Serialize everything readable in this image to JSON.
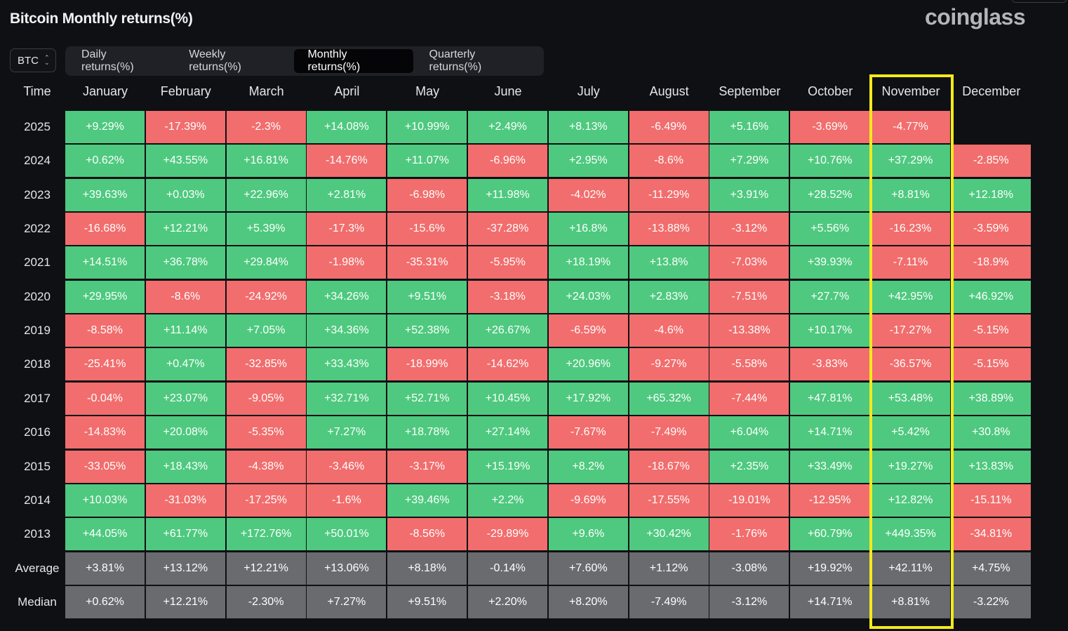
{
  "header": {
    "title": "Bitcoin Monthly returns(%)",
    "brand": "coinglass"
  },
  "asset_select": {
    "value": "BTC"
  },
  "tabs": [
    {
      "label": "Daily returns(%)",
      "active": false
    },
    {
      "label": "Weekly returns(%)",
      "active": false
    },
    {
      "label": "Monthly returns(%)",
      "active": true
    },
    {
      "label": "Quarterly returns(%)",
      "active": false
    }
  ],
  "colors": {
    "positive": "#4ec97f",
    "negative": "#f26d6d",
    "summary": "#6a6b6f",
    "highlight": "#f3ea1c"
  },
  "chart_data": {
    "type": "heatmap",
    "row_header": "Time",
    "columns": [
      "January",
      "February",
      "March",
      "April",
      "May",
      "June",
      "July",
      "August",
      "September",
      "October",
      "November",
      "December"
    ],
    "highlighted_column": "November",
    "rows": [
      {
        "label": "2025",
        "kind": "year",
        "values": [
          "+9.29%",
          "-17.39%",
          "-2.3%",
          "+14.08%",
          "+10.99%",
          "+2.49%",
          "+8.13%",
          "-6.49%",
          "+5.16%",
          "-3.69%",
          "-4.77%",
          ""
        ]
      },
      {
        "label": "2024",
        "kind": "year",
        "values": [
          "+0.62%",
          "+43.55%",
          "+16.81%",
          "-14.76%",
          "+11.07%",
          "-6.96%",
          "+2.95%",
          "-8.6%",
          "+7.29%",
          "+10.76%",
          "+37.29%",
          "-2.85%"
        ]
      },
      {
        "label": "2023",
        "kind": "year",
        "values": [
          "+39.63%",
          "+0.03%",
          "+22.96%",
          "+2.81%",
          "-6.98%",
          "+11.98%",
          "-4.02%",
          "-11.29%",
          "+3.91%",
          "+28.52%",
          "+8.81%",
          "+12.18%"
        ]
      },
      {
        "label": "2022",
        "kind": "year",
        "values": [
          "-16.68%",
          "+12.21%",
          "+5.39%",
          "-17.3%",
          "-15.6%",
          "-37.28%",
          "+16.8%",
          "-13.88%",
          "-3.12%",
          "+5.56%",
          "-16.23%",
          "-3.59%"
        ]
      },
      {
        "label": "2021",
        "kind": "year",
        "values": [
          "+14.51%",
          "+36.78%",
          "+29.84%",
          "-1.98%",
          "-35.31%",
          "-5.95%",
          "+18.19%",
          "+13.8%",
          "-7.03%",
          "+39.93%",
          "-7.11%",
          "-18.9%"
        ]
      },
      {
        "label": "2020",
        "kind": "year",
        "values": [
          "+29.95%",
          "-8.6%",
          "-24.92%",
          "+34.26%",
          "+9.51%",
          "-3.18%",
          "+24.03%",
          "+2.83%",
          "-7.51%",
          "+27.7%",
          "+42.95%",
          "+46.92%"
        ]
      },
      {
        "label": "2019",
        "kind": "year",
        "values": [
          "-8.58%",
          "+11.14%",
          "+7.05%",
          "+34.36%",
          "+52.38%",
          "+26.67%",
          "-6.59%",
          "-4.6%",
          "-13.38%",
          "+10.17%",
          "-17.27%",
          "-5.15%"
        ]
      },
      {
        "label": "2018",
        "kind": "year",
        "values": [
          "-25.41%",
          "+0.47%",
          "-32.85%",
          "+33.43%",
          "-18.99%",
          "-14.62%",
          "+20.96%",
          "-9.27%",
          "-5.58%",
          "-3.83%",
          "-36.57%",
          "-5.15%"
        ]
      },
      {
        "label": "2017",
        "kind": "year",
        "values": [
          "-0.04%",
          "+23.07%",
          "-9.05%",
          "+32.71%",
          "+52.71%",
          "+10.45%",
          "+17.92%",
          "+65.32%",
          "-7.44%",
          "+47.81%",
          "+53.48%",
          "+38.89%"
        ]
      },
      {
        "label": "2016",
        "kind": "year",
        "values": [
          "-14.83%",
          "+20.08%",
          "-5.35%",
          "+7.27%",
          "+18.78%",
          "+27.14%",
          "-7.67%",
          "-7.49%",
          "+6.04%",
          "+14.71%",
          "+5.42%",
          "+30.8%"
        ]
      },
      {
        "label": "2015",
        "kind": "year",
        "values": [
          "-33.05%",
          "+18.43%",
          "-4.38%",
          "-3.46%",
          "-3.17%",
          "+15.19%",
          "+8.2%",
          "-18.67%",
          "+2.35%",
          "+33.49%",
          "+19.27%",
          "+13.83%"
        ]
      },
      {
        "label": "2014",
        "kind": "year",
        "values": [
          "+10.03%",
          "-31.03%",
          "-17.25%",
          "-1.6%",
          "+39.46%",
          "+2.2%",
          "-9.69%",
          "-17.55%",
          "-19.01%",
          "-12.95%",
          "+12.82%",
          "-15.11%"
        ]
      },
      {
        "label": "2013",
        "kind": "year",
        "values": [
          "+44.05%",
          "+61.77%",
          "+172.76%",
          "+50.01%",
          "-8.56%",
          "-29.89%",
          "+9.6%",
          "+30.42%",
          "-1.76%",
          "+60.79%",
          "+449.35%",
          "-34.81%"
        ]
      },
      {
        "label": "Average",
        "kind": "summary",
        "values": [
          "+3.81%",
          "+13.12%",
          "+12.21%",
          "+13.06%",
          "+8.18%",
          "-0.14%",
          "+7.60%",
          "+1.12%",
          "-3.08%",
          "+19.92%",
          "+42.11%",
          "+4.75%"
        ]
      },
      {
        "label": "Median",
        "kind": "summary",
        "values": [
          "+0.62%",
          "+12.21%",
          "-2.30%",
          "+7.27%",
          "+9.51%",
          "+2.20%",
          "+8.20%",
          "-7.49%",
          "-3.12%",
          "+14.71%",
          "+8.81%",
          "-3.22%"
        ]
      }
    ]
  }
}
